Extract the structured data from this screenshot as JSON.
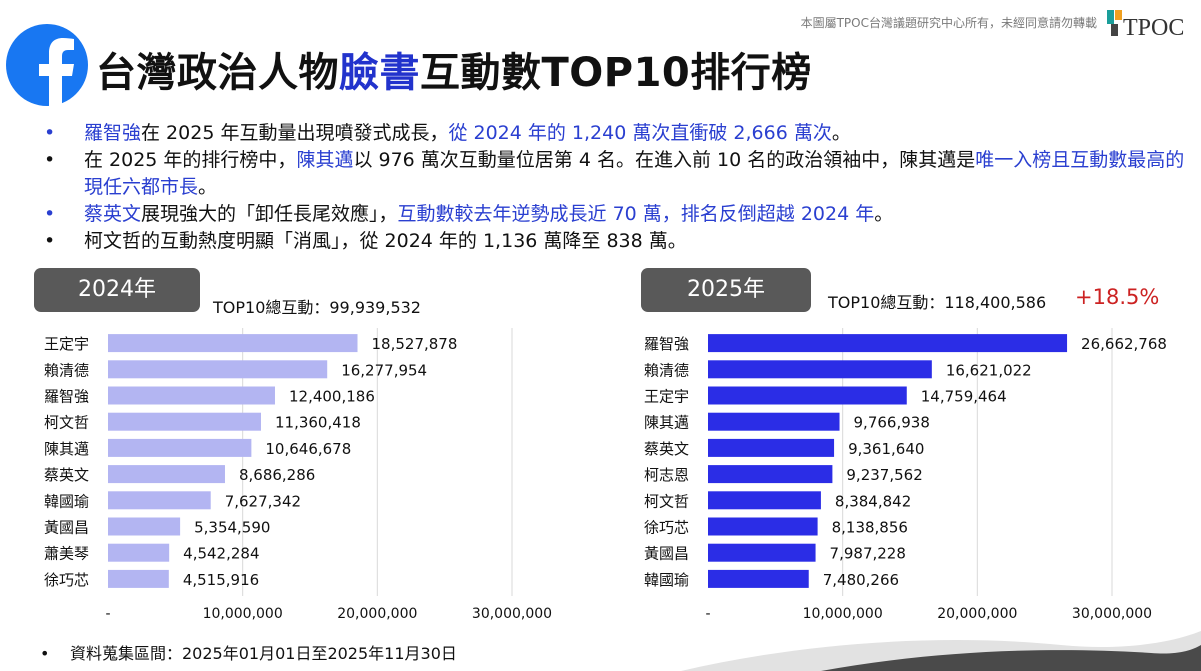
{
  "copyright": "本圖屬TPOC台灣議題研究中心所有，未經同意請勿轉載",
  "brand": {
    "logo_text": "TPOC",
    "accent_teal": "#1a9e9a",
    "accent_orange": "#f0a020"
  },
  "title": {
    "pre": "台灣政治人物",
    "highlight": "臉書",
    "post": "互動數TOP10排行榜",
    "highlight_color": "#2233cc"
  },
  "bullets": [
    {
      "dot": "•",
      "segments": [
        {
          "text": "羅智強",
          "color": "blue"
        },
        {
          "text": "在 2025 年互動量出現噴發式成長，",
          "color": "black"
        },
        {
          "text": "從 2024 年的 1,240 萬次直衝破 2,666 萬次",
          "color": "blue"
        },
        {
          "text": "。",
          "color": "black"
        }
      ]
    },
    {
      "dot": "•",
      "segments": [
        {
          "text": "在 2025 年的排行榜中，",
          "color": "black"
        },
        {
          "text": "陳其邁",
          "color": "blue"
        },
        {
          "text": "以 976 萬次互動量位居第 4 名。在進入前 10 名的政治領袖中，陳其邁是",
          "color": "black"
        },
        {
          "text": "唯一入榜且互動數最高的現任六都市長",
          "color": "blue"
        },
        {
          "text": "。",
          "color": "black"
        }
      ]
    },
    {
      "dot": "•",
      "segments": [
        {
          "text": "蔡英文",
          "color": "blue"
        },
        {
          "text": "展現強大的「卸任長尾效應」，",
          "color": "black"
        },
        {
          "text": "互動數較去年逆勢成長近 70 萬，排名反倒超越 2024 年",
          "color": "blue"
        },
        {
          "text": "。",
          "color": "black"
        }
      ]
    },
    {
      "dot": "•",
      "segments": [
        {
          "text": "柯文哲的互動熱度明顯「消風」，從 2024 年的 1,136 萬降至 838 萬。",
          "color": "black"
        }
      ]
    }
  ],
  "colors": {
    "blue_text": "#2a3fd0",
    "bar_2024": "#b3b5f2",
    "bar_2025": "#2b2de6",
    "growth": "#cc2222",
    "tab_bg": "#595959"
  },
  "chart_data": [
    {
      "type": "bar",
      "orientation": "horizontal",
      "year_tab": "2024年",
      "total_label": "TOP10總互動：99,939,532",
      "categories": [
        "王定宇",
        "賴清德",
        "羅智強",
        "柯文哲",
        "陳其邁",
        "蔡英文",
        "韓國瑜",
        "黃國昌",
        "蕭美琴",
        "徐巧芯"
      ],
      "values": [
        18527878,
        16277954,
        12400186,
        11360418,
        10646678,
        8686286,
        7627342,
        5354590,
        4542284,
        4515916
      ],
      "value_labels": [
        "18,527,878",
        "16,277,954",
        "12,400,186",
        "11,360,418",
        "10,646,678",
        "8,686,286",
        "7,627,342",
        "5,354,590",
        "4,542,284",
        "4,515,916"
      ],
      "xlim": [
        0,
        30000000
      ],
      "xticks": [
        "-",
        "10,000,000",
        "20,000,000",
        "30,000,000"
      ],
      "grid": true
    },
    {
      "type": "bar",
      "orientation": "horizontal",
      "year_tab": "2025年",
      "total_label": "TOP10總互動：118,400,586",
      "growth_label": "+18.5%",
      "categories": [
        "羅智強",
        "賴清德",
        "王定宇",
        "陳其邁",
        "蔡英文",
        "柯志恩",
        "柯文哲",
        "徐巧芯",
        "黃國昌",
        "韓國瑜"
      ],
      "values": [
        26662768,
        16621022,
        14759464,
        9766938,
        9361640,
        9237562,
        8384842,
        8138856,
        7987228,
        7480266
      ],
      "value_labels": [
        "26,662,768",
        "16,621,022",
        "14,759,464",
        "9,766,938",
        "9,361,640",
        "9,237,562",
        "8,384,842",
        "8,138,856",
        "7,987,228",
        "7,480,266"
      ],
      "xlim": [
        0,
        30000000
      ],
      "xticks": [
        "-",
        "10,000,000",
        "20,000,000",
        "30,000,000"
      ],
      "grid": true
    }
  ],
  "footnote": {
    "dot": "•",
    "text": "資料蒐集區間：2025年01月01日至2025年11月30日"
  }
}
